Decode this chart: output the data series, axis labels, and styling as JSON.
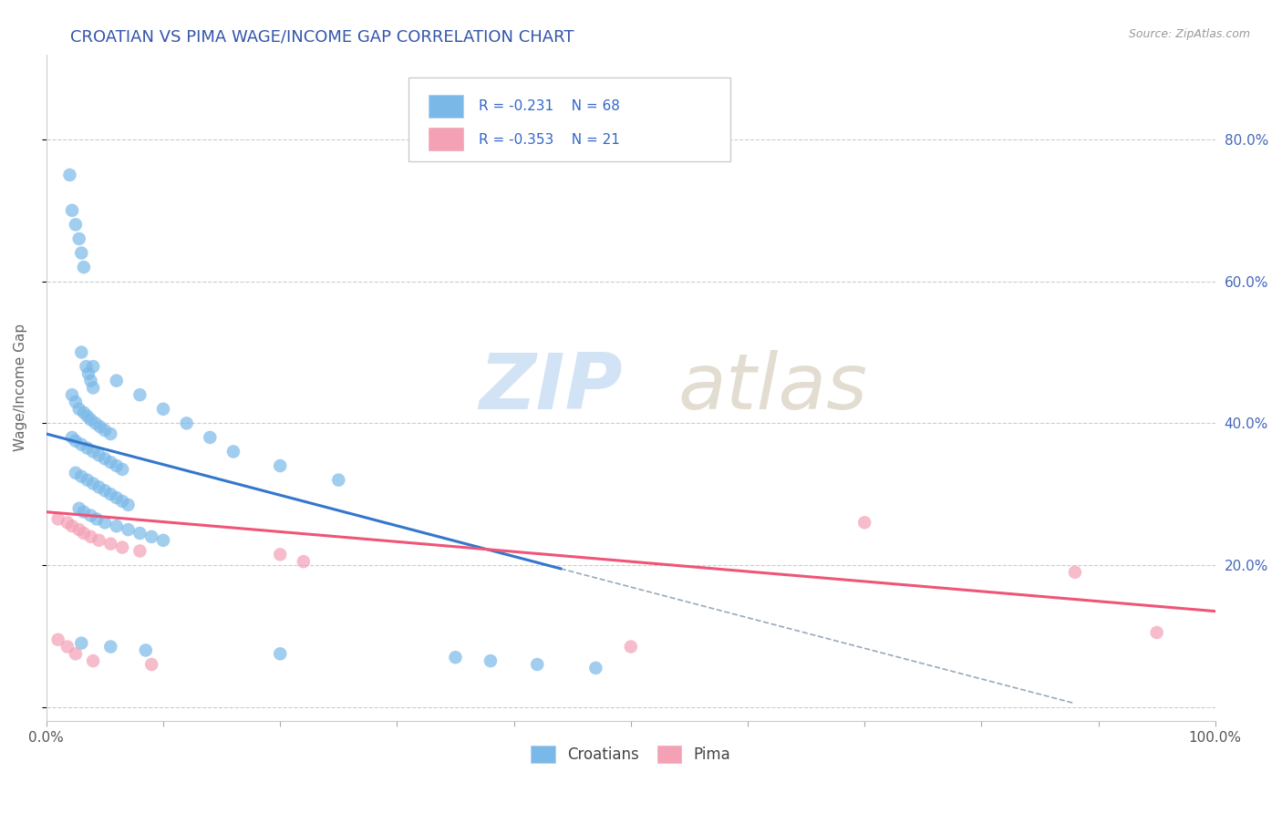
{
  "title": "CROATIAN VS PIMA WAGE/INCOME GAP CORRELATION CHART",
  "source": "Source: ZipAtlas.com",
  "ylabel": "Wage/Income Gap",
  "xlim": [
    0.0,
    1.0
  ],
  "ylim": [
    -0.02,
    0.92
  ],
  "croatian_R": -0.231,
  "croatian_N": 68,
  "pima_R": -0.353,
  "pima_N": 21,
  "legend_label_1": "Croatians",
  "legend_label_2": "Pima",
  "color_croatian": "#7ab8e8",
  "color_pima": "#f4a0b5",
  "color_croatian_line": "#3377cc",
  "color_pima_line": "#ee5577",
  "color_dashed": "#99aabb",
  "title_color": "#3355aa",
  "source_color": "#999999",
  "croatian_line_x0": 0.0,
  "croatian_line_y0": 0.385,
  "croatian_line_x1": 0.44,
  "croatian_line_y1": 0.195,
  "pima_line_x0": 0.0,
  "pima_line_y0": 0.275,
  "pima_line_x1": 1.0,
  "pima_line_y1": 0.135,
  "dashed_line_x0": 0.44,
  "dashed_line_y0": 0.195,
  "dashed_line_x1": 0.88,
  "dashed_line_y1": 0.005,
  "croatian_scatter_x": [
    0.02,
    0.022,
    0.025,
    0.028,
    0.03,
    0.032,
    0.034,
    0.036,
    0.038,
    0.04,
    0.022,
    0.025,
    0.028,
    0.032,
    0.035,
    0.038,
    0.042,
    0.046,
    0.05,
    0.055,
    0.022,
    0.025,
    0.03,
    0.035,
    0.04,
    0.045,
    0.05,
    0.055,
    0.06,
    0.065,
    0.025,
    0.03,
    0.035,
    0.04,
    0.045,
    0.05,
    0.055,
    0.06,
    0.065,
    0.07,
    0.028,
    0.032,
    0.038,
    0.043,
    0.05,
    0.06,
    0.07,
    0.08,
    0.09,
    0.1,
    0.03,
    0.04,
    0.06,
    0.08,
    0.1,
    0.12,
    0.14,
    0.16,
    0.2,
    0.25,
    0.03,
    0.055,
    0.085,
    0.2,
    0.35,
    0.38,
    0.42,
    0.47
  ],
  "croatian_scatter_y": [
    0.75,
    0.7,
    0.68,
    0.66,
    0.64,
    0.62,
    0.48,
    0.47,
    0.46,
    0.45,
    0.44,
    0.43,
    0.42,
    0.415,
    0.41,
    0.405,
    0.4,
    0.395,
    0.39,
    0.385,
    0.38,
    0.375,
    0.37,
    0.365,
    0.36,
    0.355,
    0.35,
    0.345,
    0.34,
    0.335,
    0.33,
    0.325,
    0.32,
    0.315,
    0.31,
    0.305,
    0.3,
    0.295,
    0.29,
    0.285,
    0.28,
    0.275,
    0.27,
    0.265,
    0.26,
    0.255,
    0.25,
    0.245,
    0.24,
    0.235,
    0.5,
    0.48,
    0.46,
    0.44,
    0.42,
    0.4,
    0.38,
    0.36,
    0.34,
    0.32,
    0.09,
    0.085,
    0.08,
    0.075,
    0.07,
    0.065,
    0.06,
    0.055
  ],
  "pima_scatter_x": [
    0.01,
    0.018,
    0.022,
    0.028,
    0.032,
    0.038,
    0.045,
    0.055,
    0.065,
    0.08,
    0.01,
    0.018,
    0.025,
    0.04,
    0.09,
    0.2,
    0.22,
    0.5,
    0.7,
    0.88,
    0.95
  ],
  "pima_scatter_y": [
    0.265,
    0.26,
    0.255,
    0.25,
    0.245,
    0.24,
    0.235,
    0.23,
    0.225,
    0.22,
    0.095,
    0.085,
    0.075,
    0.065,
    0.06,
    0.215,
    0.205,
    0.085,
    0.26,
    0.19,
    0.105
  ]
}
